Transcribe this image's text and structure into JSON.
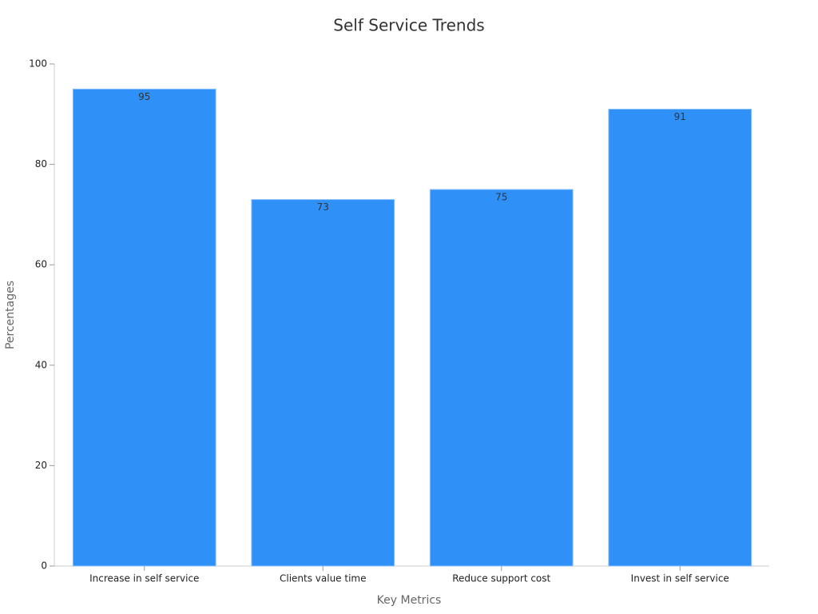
{
  "chart_data": {
    "type": "bar",
    "title": "Self Service Trends",
    "x_label": "Key Metrics",
    "y_label": "Percentages",
    "categories": [
      "Increase in self service",
      "Clients value time",
      "Reduce support cost",
      "Invest in self service"
    ],
    "values": [
      95,
      73,
      75,
      91
    ],
    "color": "#2f91f8",
    "ylim": [
      0,
      100
    ],
    "yticks": [
      0,
      20,
      40,
      60,
      80,
      100
    ],
    "grid": false
  }
}
